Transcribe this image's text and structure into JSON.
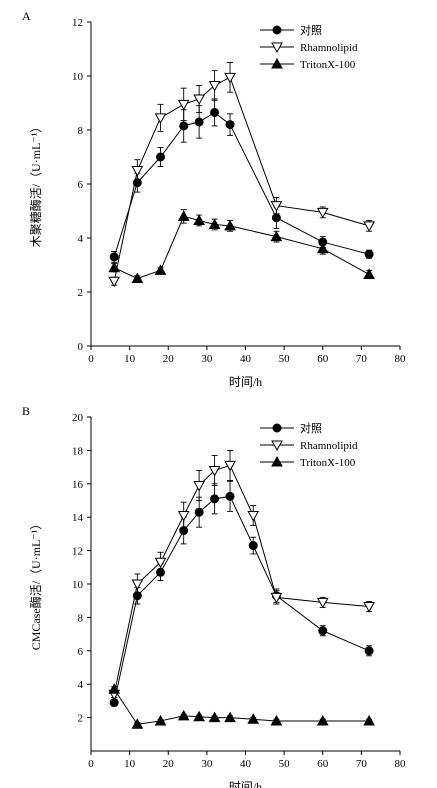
{
  "chart_data": [
    {
      "panel": "A",
      "type": "line",
      "xlabel": "时间/h",
      "ylabel": "木聚糖酶活/（U·mL⁻¹）",
      "xlim": [
        0,
        80
      ],
      "ylim": [
        0,
        12
      ],
      "xticks": [
        0,
        10,
        20,
        30,
        40,
        50,
        60,
        70,
        80
      ],
      "yticks": [
        0,
        2,
        4,
        6,
        8,
        10,
        12
      ],
      "legend_position": "top-right",
      "grid": false,
      "series": [
        {
          "name": "对照",
          "marker": "circle",
          "x": [
            6,
            12,
            18,
            24,
            28,
            32,
            36,
            48,
            60,
            72
          ],
          "y": [
            3.3,
            6.05,
            7.0,
            8.15,
            8.3,
            8.65,
            8.2,
            4.75,
            3.85,
            3.4
          ],
          "err": [
            0.2,
            0.35,
            0.35,
            0.6,
            0.6,
            0.5,
            0.4,
            0.4,
            0.2,
            0.15
          ]
        },
        {
          "name": "Rhamnolipid",
          "marker": "triangle-down-open",
          "x": [
            6,
            12,
            18,
            24,
            28,
            32,
            36,
            48,
            60,
            72
          ],
          "y": [
            2.4,
            6.5,
            8.45,
            8.95,
            9.15,
            9.65,
            9.95,
            5.2,
            4.95,
            4.45
          ],
          "err": [
            0.15,
            0.4,
            0.5,
            0.6,
            0.5,
            0.55,
            0.55,
            0.3,
            0.2,
            0.2
          ]
        },
        {
          "name": "TritonX-100",
          "marker": "triangle-up",
          "x": [
            6,
            12,
            18,
            24,
            28,
            32,
            36,
            48,
            60,
            72
          ],
          "y": [
            2.9,
            2.5,
            2.8,
            4.8,
            4.65,
            4.5,
            4.45,
            4.05,
            3.6,
            2.65
          ],
          "err": [
            0.15,
            0.1,
            0.1,
            0.25,
            0.2,
            0.2,
            0.2,
            0.2,
            0.2,
            0.15
          ]
        }
      ]
    },
    {
      "panel": "B",
      "type": "line",
      "xlabel": "时间/h",
      "ylabel": "CMCase酶活/（U·mL⁻¹）",
      "xlim": [
        0,
        80
      ],
      "ylim": [
        0,
        20
      ],
      "xticks": [
        0,
        10,
        20,
        30,
        40,
        50,
        60,
        70,
        80
      ],
      "yticks": [
        2,
        4,
        6,
        8,
        10,
        12,
        14,
        16,
        18,
        20
      ],
      "legend_position": "top-right",
      "grid": false,
      "series": [
        {
          "name": "对照",
          "marker": "circle",
          "x": [
            6,
            12,
            18,
            24,
            28,
            32,
            36,
            42,
            48,
            60,
            72
          ],
          "y": [
            2.9,
            9.3,
            10.7,
            13.2,
            14.3,
            15.1,
            15.25,
            12.3,
            9.3,
            7.2,
            6.0
          ],
          "err": [
            0.2,
            0.5,
            0.5,
            0.8,
            0.9,
            0.9,
            0.9,
            0.5,
            0.4,
            0.3,
            0.3
          ]
        },
        {
          "name": "Rhamnolipid",
          "marker": "triangle-down-open",
          "x": [
            6,
            12,
            18,
            24,
            28,
            32,
            36,
            42,
            48,
            60,
            72
          ],
          "y": [
            3.4,
            10.0,
            11.3,
            14.1,
            15.9,
            16.8,
            17.1,
            14.1,
            9.2,
            8.9,
            8.65
          ],
          "err": [
            0.2,
            0.6,
            0.6,
            0.8,
            0.9,
            0.9,
            0.9,
            0.6,
            0.4,
            0.3,
            0.3
          ]
        },
        {
          "name": "TritonX-100",
          "marker": "triangle-up",
          "x": [
            6,
            12,
            18,
            24,
            28,
            32,
            36,
            42,
            48,
            60,
            72
          ],
          "y": [
            3.7,
            1.6,
            1.8,
            2.1,
            2.05,
            2.0,
            2.0,
            1.9,
            1.8,
            1.8,
            1.8
          ],
          "err": [
            0.15,
            0.1,
            0.1,
            0.1,
            0.1,
            0.1,
            0.1,
            0.1,
            0.1,
            0.1,
            0.1
          ]
        }
      ]
    }
  ]
}
